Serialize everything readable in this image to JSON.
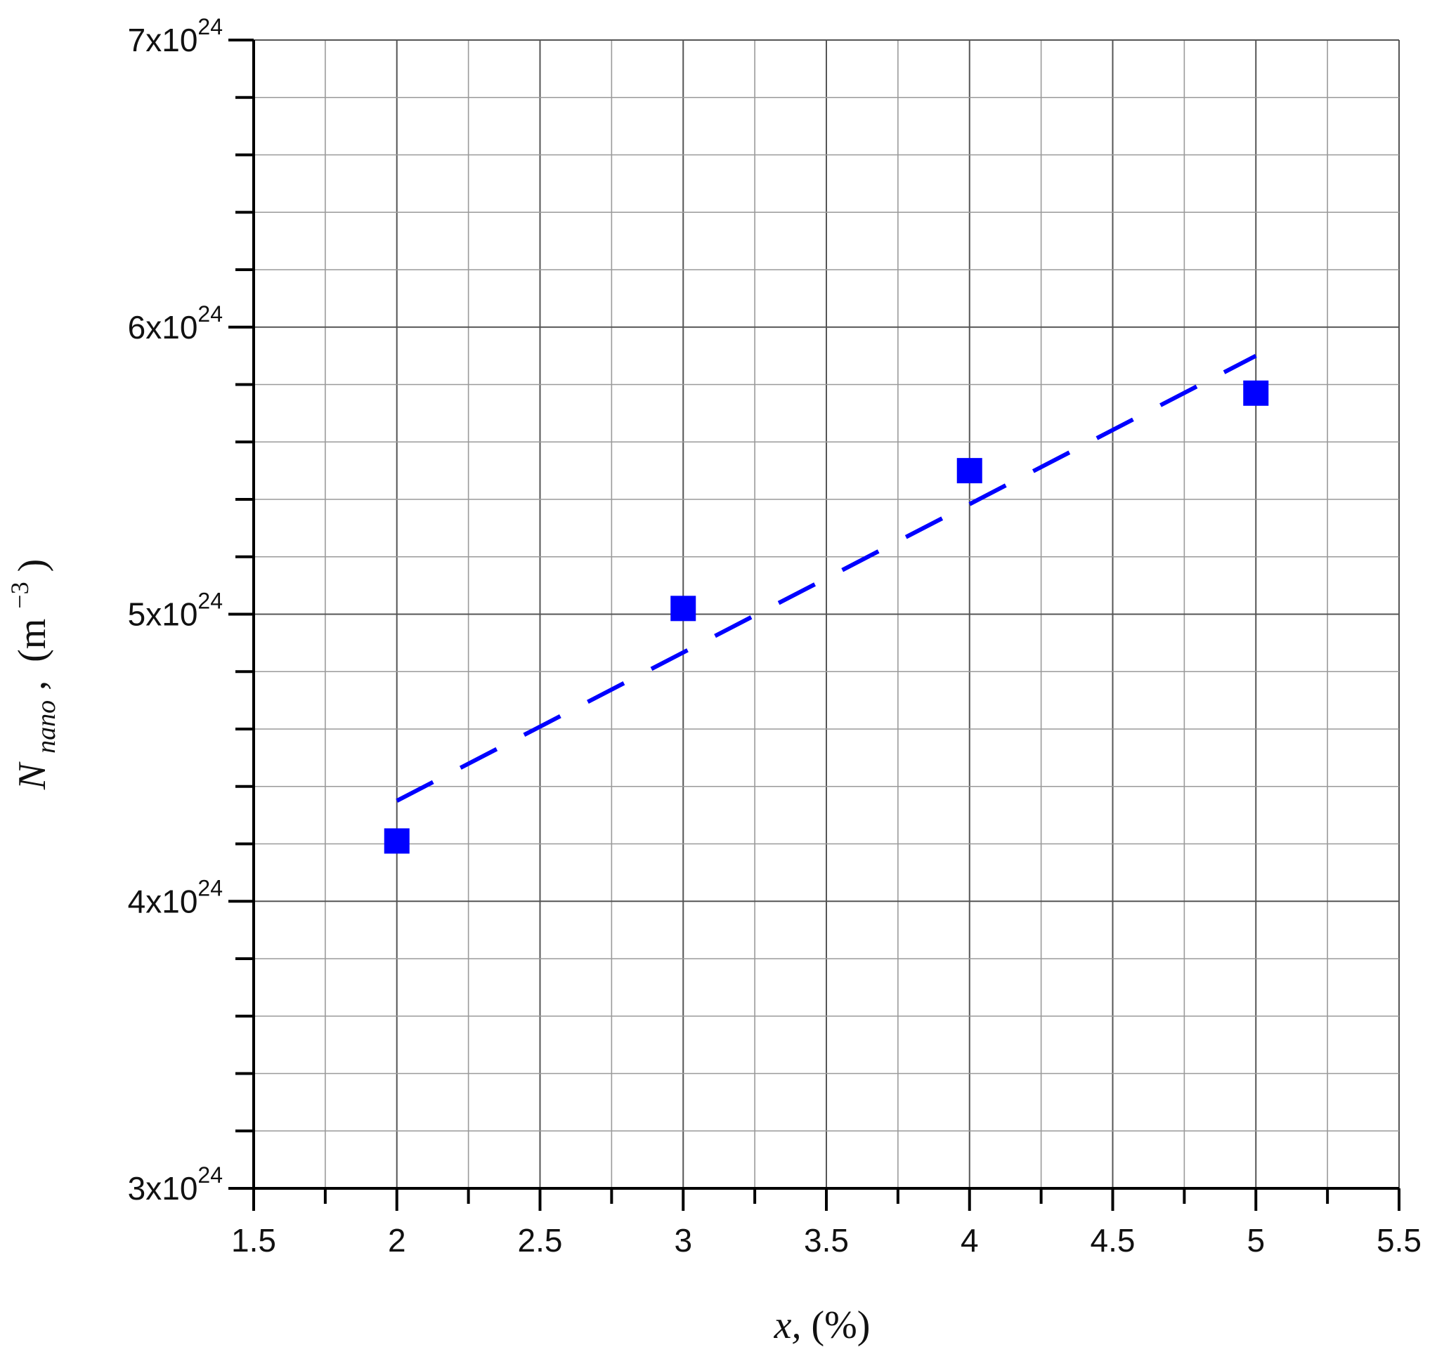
{
  "chart_data": {
    "type": "scatter",
    "xlabel": {
      "var": "x,",
      "unit": "(%)"
    },
    "ylabel": {
      "var": "N",
      "sub": "nano",
      "comma": ",",
      "unit_pre": "(m",
      "unit_exp": "−3",
      "unit_post": ")"
    },
    "xlim": [
      1.5,
      5.5
    ],
    "ylim": [
      3e+24,
      7e+24
    ],
    "x_ticks": [
      "1.5",
      "2",
      "2.5",
      "3",
      "3.5",
      "4",
      "4.5",
      "5",
      "5.5"
    ],
    "y_ticks": [
      {
        "value": 3e+24,
        "mantissa": "3x10",
        "exp": "24"
      },
      {
        "value": 4e+24,
        "mantissa": "4x10",
        "exp": "24"
      },
      {
        "value": 5e+24,
        "mantissa": "5x10",
        "exp": "24"
      },
      {
        "value": 6e+24,
        "mantissa": "6x10",
        "exp": "24"
      },
      {
        "value": 7e+24,
        "mantissa": "7x10",
        "exp": "24"
      }
    ],
    "grid": true,
    "series": [
      {
        "kind": "markers",
        "marker": "square",
        "color": "#0000ff",
        "points": [
          {
            "x": 2,
            "y": 4.21e+24
          },
          {
            "x": 3,
            "y": 5.02e+24
          },
          {
            "x": 4,
            "y": 5.5e+24
          },
          {
            "x": 5,
            "y": 5.77e+24
          }
        ]
      },
      {
        "kind": "fit-line",
        "style": "dashed",
        "color": "#0000ff",
        "points": [
          {
            "x": 2,
            "y": 4.35e+24
          },
          {
            "x": 5,
            "y": 5.9e+24
          }
        ]
      }
    ]
  }
}
